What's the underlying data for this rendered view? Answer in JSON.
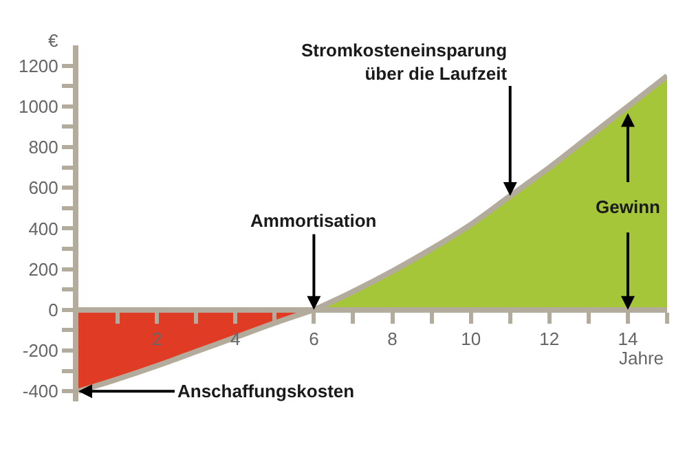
{
  "chart_data": {
    "type": "area",
    "xlabel": "Jahre",
    "ylabel": "€",
    "series": [
      {
        "color": "#e03c25",
        "x": [
          0,
          1,
          2,
          3,
          4,
          5,
          6
        ],
        "values": [
          -400,
          -340,
          -275,
          -205,
          -135,
          -65,
          0
        ]
      },
      {
        "color": "#a5c639",
        "x": [
          6,
          7,
          8,
          9,
          10,
          11,
          12,
          13,
          14,
          15
        ],
        "values": [
          0,
          90,
          190,
          300,
          420,
          560,
          700,
          850,
          1000,
          1150
        ]
      }
    ],
    "xlim": [
      0,
      15
    ],
    "ylim": [
      -450,
      1300
    ],
    "xticks": [
      {
        "value": 1,
        "label": null
      },
      2,
      {
        "value": 3,
        "label": null
      },
      4,
      {
        "value": 5,
        "label": null
      },
      6,
      {
        "value": 7,
        "label": null
      },
      8,
      {
        "value": 9,
        "label": null
      },
      10,
      {
        "value": 11,
        "label": null
      },
      12,
      {
        "value": 13,
        "label": null
      },
      14,
      {
        "value": 15,
        "label": null
      }
    ],
    "yticks": [
      -400,
      {
        "value": -300,
        "label": null
      },
      -200,
      {
        "value": -100,
        "label": null
      },
      0,
      {
        "value": 100,
        "label": null
      },
      200,
      {
        "value": 300,
        "label": null
      },
      400,
      {
        "value": 500,
        "label": null
      },
      600,
      {
        "value": 700,
        "label": null
      },
      800,
      {
        "value": 900,
        "label": null
      },
      1000,
      {
        "value": 1100,
        "label": null
      },
      1200
    ],
    "annotations": [
      {
        "text": "Anschaffungskosten",
        "x": 0,
        "y": -400
      },
      {
        "text": "Ammortisation",
        "x": 6,
        "y": 0
      },
      {
        "text": "Stromkosteneinsparung\nüber die Laufzeit",
        "x": 11,
        "y": 560
      },
      {
        "text": "Gewinn",
        "x": 14,
        "y": 0
      }
    ]
  }
}
